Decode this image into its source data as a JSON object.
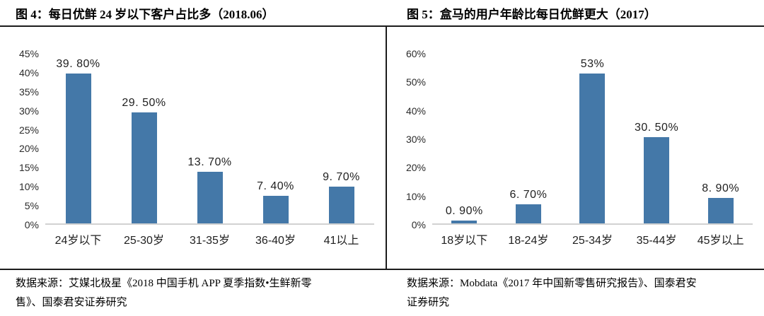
{
  "colors": {
    "bar": "#4478a8",
    "baseline": "#d2d2d2",
    "rule": "#1c1c1c",
    "text": "#1f1f1f"
  },
  "chart_data": [
    {
      "type": "bar",
      "title": "图 4：每日优鲜 24 岁以下客户占比多（2018.06）",
      "categories": [
        "24岁以下",
        "25-30岁",
        "31-35岁",
        "36-40岁",
        "41以上"
      ],
      "values": [
        39.8,
        29.5,
        13.7,
        7.4,
        9.7
      ],
      "value_labels": [
        "39. 80%",
        "29. 50%",
        "13. 70%",
        "7. 40%",
        "9. 70%"
      ],
      "xlabel": "",
      "ylabel": "",
      "ylim": [
        0,
        45
      ],
      "ytick_step": 5,
      "yticks": [
        "0%",
        "5%",
        "10%",
        "15%",
        "20%",
        "25%",
        "30%",
        "35%",
        "40%",
        "45%"
      ],
      "grid": false,
      "legend": null,
      "bar_color": "#4478a8",
      "source_lines": [
        "数据来源：艾媒北极星《2018 中国手机 APP 夏季指数•生鲜新零",
        "售》、国泰君安证券研究"
      ]
    },
    {
      "type": "bar",
      "title": "图 5：盒马的用户年龄比每日优鲜更大（2017）",
      "categories": [
        "18岁以下",
        "18-24岁",
        "25-34岁",
        "35-44岁",
        "45岁以上"
      ],
      "values": [
        0.9,
        6.7,
        53,
        30.5,
        8.9
      ],
      "value_labels": [
        "0. 90%",
        "6. 70%",
        "53%",
        "30. 50%",
        "8. 90%"
      ],
      "xlabel": "",
      "ylabel": "",
      "ylim": [
        0,
        60
      ],
      "ytick_step": 10,
      "yticks": [
        "0%",
        "10%",
        "20%",
        "30%",
        "40%",
        "50%",
        "60%"
      ],
      "grid": false,
      "legend": null,
      "bar_color": "#4478a8",
      "source_lines": [
        "数据来源：Mobdata《2017 年中国新零售研究报告》、国泰君安",
        "证券研究"
      ]
    }
  ]
}
